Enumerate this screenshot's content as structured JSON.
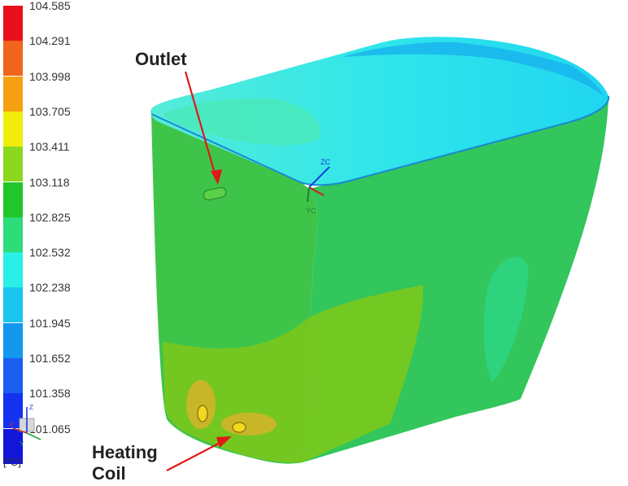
{
  "legend": {
    "ticks": [
      "104.585",
      "104.291",
      "103.998",
      "103.705",
      "103.411",
      "103.118",
      "102.825",
      "102.532",
      "102.238",
      "101.945",
      "101.652",
      "101.358",
      "101.065"
    ],
    "colors": [
      "#e8101a",
      "#f0641e",
      "#f5a012",
      "#f2ec0a",
      "#8cd81e",
      "#22c62a",
      "#2fdc7a",
      "#28f0e6",
      "#1ac6ee",
      "#1296ee",
      "#1a5ef0",
      "#1432f0",
      "#1216d8"
    ],
    "unit": "[°C]"
  },
  "triad": {
    "z": "Z",
    "x": "X",
    "y": "Y"
  },
  "model_axes": {
    "zc": "ZC",
    "yc": "YC"
  },
  "callouts": {
    "outlet": "Outlet",
    "coil_line1": "Heating",
    "coil_line2": "Coil"
  }
}
